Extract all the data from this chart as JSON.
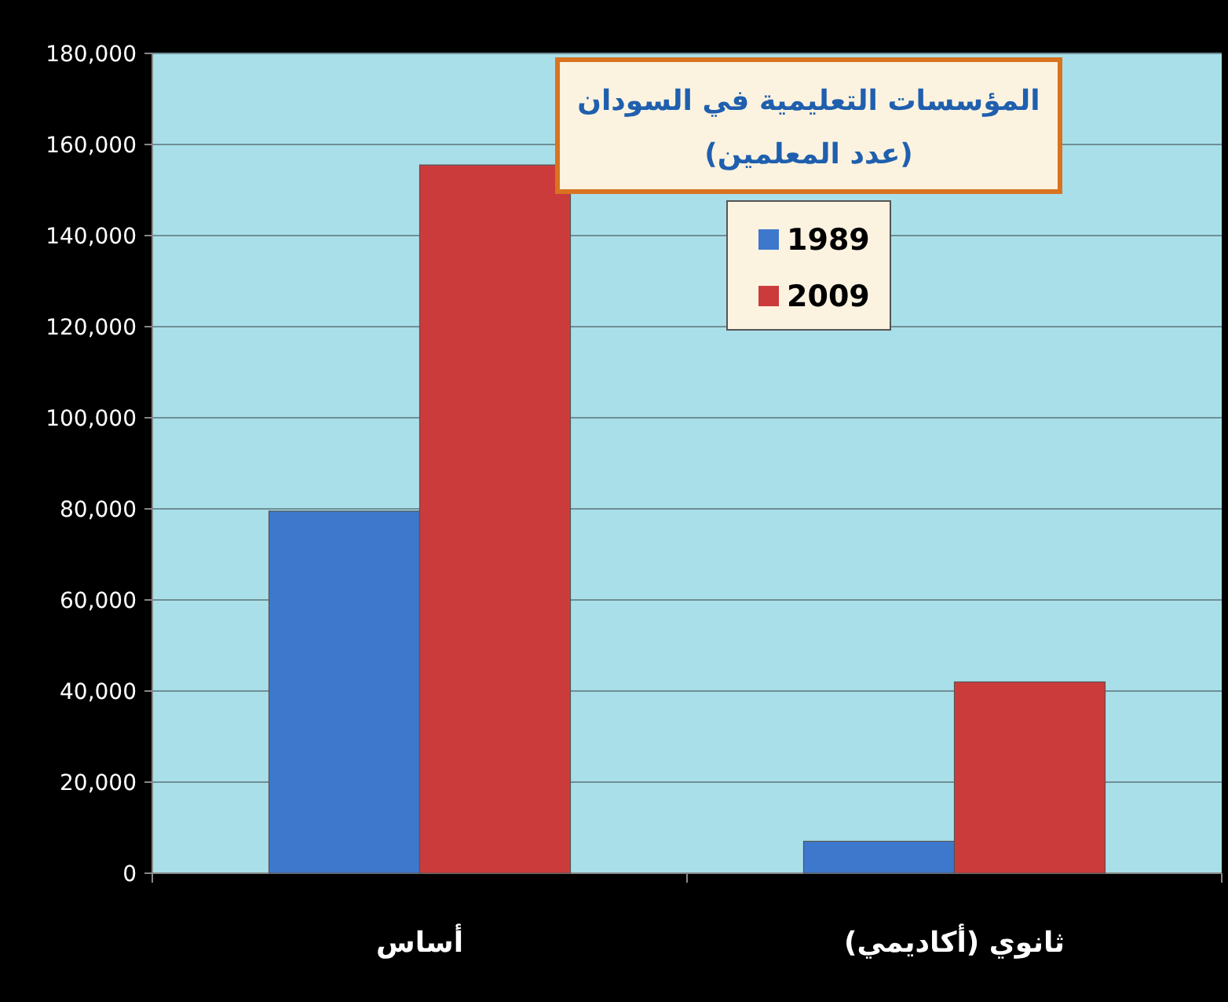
{
  "chart_data": {
    "type": "bar",
    "title": "المؤسسات التعليمية في السودان",
    "subtitle": "(عدد المعلمين)",
    "categories": [
      "أساس",
      "ثانوي (أكاديمي)"
    ],
    "series": [
      {
        "name": "1989",
        "color": "#3d78cc",
        "values": [
          79500,
          7000
        ]
      },
      {
        "name": "2009",
        "color": "#cc3b3b",
        "values": [
          155500,
          42000
        ]
      }
    ],
    "ylim": [
      0,
      180000
    ],
    "yticks": [
      {
        "value": 0,
        "label": "0"
      },
      {
        "value": 20000,
        "label": "20,000"
      },
      {
        "value": 40000,
        "label": "40,000"
      },
      {
        "value": 60000,
        "label": "60,000"
      },
      {
        "value": 80000,
        "label": "80,000"
      },
      {
        "value": 100000,
        "label": "100,000"
      },
      {
        "value": 120000,
        "label": "120,000"
      },
      {
        "value": 140000,
        "label": "140,000"
      },
      {
        "value": 160000,
        "label": "160,000"
      },
      {
        "value": 180000,
        "label": "180,000"
      }
    ],
    "grid": "y",
    "legend": "top"
  }
}
